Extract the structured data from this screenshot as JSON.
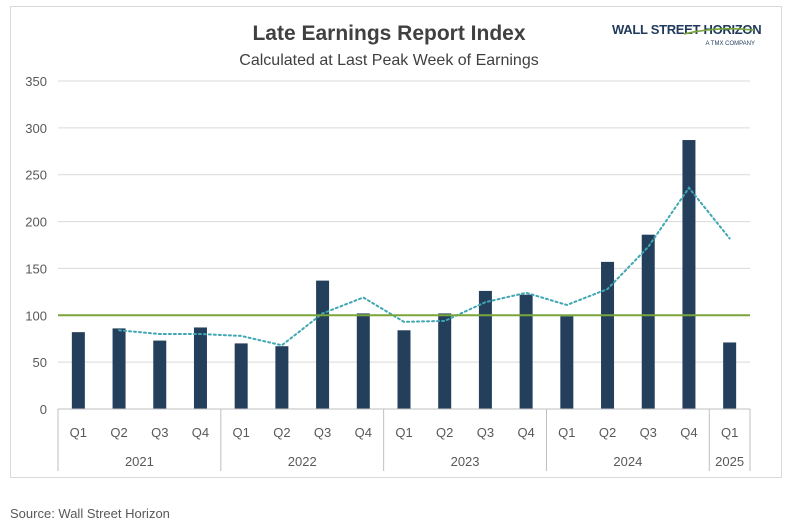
{
  "brand": {
    "name": "WALL STREET HORIZON",
    "tagline": "A TMX COMPANY",
    "color": "#1f3a5a",
    "accent": "#7aa53a"
  },
  "source": "Source: Wall Street Horizon",
  "chart_data": {
    "type": "bar",
    "title": "Late Earnings Report Index",
    "subtitle": "Calculated at Last Peak Week of Earnings",
    "xlabel": "",
    "ylabel": "",
    "ylim": [
      0,
      350
    ],
    "yticks": [
      0,
      50,
      100,
      150,
      200,
      250,
      300,
      350
    ],
    "grid": true,
    "legend": "none",
    "categories": [
      "Q1",
      "Q2",
      "Q3",
      "Q4",
      "Q1",
      "Q2",
      "Q3",
      "Q4",
      "Q1",
      "Q2",
      "Q3",
      "Q4",
      "Q1",
      "Q2",
      "Q3",
      "Q4",
      "Q1"
    ],
    "groups": [
      {
        "label": "2021",
        "count": 4
      },
      {
        "label": "2022",
        "count": 4
      },
      {
        "label": "2023",
        "count": 4
      },
      {
        "label": "2024",
        "count": 4
      },
      {
        "label": "2025",
        "count": 1
      }
    ],
    "series": [
      {
        "type": "bar",
        "color": "#243f5c",
        "values": [
          82,
          86,
          73,
          87,
          70,
          67,
          137,
          102,
          84,
          102,
          126,
          122,
          99,
          157,
          186,
          287,
          71
        ]
      },
      {
        "type": "line",
        "style": "dotted",
        "color": "#3fa6b2",
        "values": [
          null,
          84,
          80,
          80,
          78,
          68,
          102,
          119,
          93,
          94,
          114,
          124,
          111,
          128,
          173,
          236,
          182
        ]
      },
      {
        "type": "line",
        "style": "solid",
        "color": "#7aa53a",
        "values": [
          100,
          100,
          100,
          100,
          100,
          100,
          100,
          100,
          100,
          100,
          100,
          100,
          100,
          100,
          100,
          100,
          100
        ]
      }
    ]
  }
}
